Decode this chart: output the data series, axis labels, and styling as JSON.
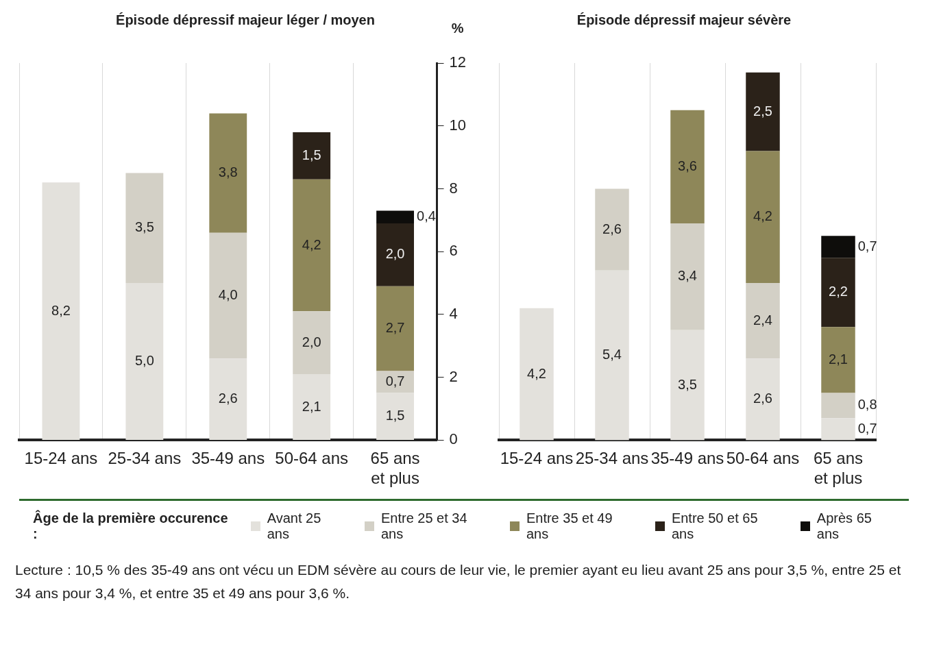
{
  "chart_data": [
    {
      "type": "bar",
      "stacked": true,
      "title": "Épisode dépressif majeur léger / moyen",
      "ylabel": "%",
      "categories": [
        "15-24 ans",
        "25-34 ans",
        "35-49 ans",
        "50-64 ans",
        "65 ans et plus"
      ],
      "ylim": [
        0,
        12
      ],
      "yticks": [
        0,
        2,
        4,
        6,
        8,
        10,
        12
      ],
      "grid": "x",
      "legend": "bottom",
      "legend_title": "Âge de la première occurence :",
      "annotations": [
        "Lecture : 10,5 % des 35-49 ans ont vécu un EDM sévère au cours de leur vie, le premier ayant eu lieu avant 25 ans pour 3,5 %, entre 25 et 34 ans pour 3,4 %, et entre 35 et 49 ans pour 3,6 %."
      ],
      "series": [
        {
          "name": "Avant 25 ans",
          "color": "#e3e1dc",
          "values": [
            8.2,
            5.0,
            2.6,
            2.1,
            1.5
          ],
          "value_labels": [
            "8,2",
            "5,0",
            "2,6",
            "2,1",
            "1,5"
          ]
        },
        {
          "name": "Entre 25 et 34 ans",
          "color": "#d3d0c6",
          "values": [
            null,
            3.5,
            4.0,
            2.0,
            0.7
          ],
          "value_labels": [
            null,
            "3,5",
            "4,0",
            "2,0",
            "0,7"
          ]
        },
        {
          "name": "Entre 35 et 49 ans",
          "color": "#8e8759",
          "values": [
            null,
            null,
            3.8,
            4.2,
            2.7
          ],
          "value_labels": [
            null,
            null,
            "3,8",
            "4,2",
            "2,7"
          ]
        },
        {
          "name": "Entre 50 et 65 ans",
          "color": "#2b2219",
          "values": [
            null,
            null,
            null,
            1.5,
            2.0
          ],
          "value_labels": [
            null,
            null,
            null,
            "1,5",
            "2,0"
          ]
        },
        {
          "name": "Après 65 ans",
          "color": "#0e0d0b",
          "values": [
            null,
            null,
            null,
            null,
            0.4
          ],
          "value_labels": [
            null,
            null,
            null,
            null,
            "0,4"
          ]
        }
      ]
    },
    {
      "type": "bar",
      "stacked": true,
      "title": "Épisode dépressif majeur sévère",
      "categories": [
        "15-24 ans",
        "25-34 ans",
        "35-49 ans",
        "50-64 ans",
        "65 ans et plus"
      ],
      "ylim": [
        0,
        12
      ],
      "yticks": [
        0,
        2,
        4,
        6,
        8,
        10,
        12
      ],
      "tick_labels": "x",
      "grid": "x",
      "series": [
        {
          "color": "#e3e1dc",
          "values": [
            4.2,
            5.4,
            3.5,
            2.6,
            0.7
          ],
          "value_labels": [
            "4,2",
            "5,4",
            "3,5",
            "2,6",
            "0,7"
          ]
        },
        {
          "color": "#d3d0c6",
          "values": [
            null,
            2.6,
            3.4,
            2.4,
            0.8
          ],
          "value_labels": [
            null,
            "2,6",
            "3,4",
            "2,4",
            "0,8"
          ]
        },
        {
          "color": "#8e8759",
          "values": [
            null,
            null,
            3.6,
            4.2,
            2.1
          ],
          "value_labels": [
            null,
            null,
            "3,6",
            "4,2",
            "2,1"
          ]
        },
        {
          "color": "#2b2219",
          "values": [
            null,
            null,
            null,
            2.5,
            2.2
          ],
          "value_labels": [
            null,
            null,
            null,
            "2,5",
            "2,2"
          ]
        },
        {
          "color": "#0e0d0b",
          "values": [
            null,
            null,
            null,
            null,
            0.7
          ],
          "value_labels": [
            null,
            null,
            null,
            null,
            "0,7"
          ]
        }
      ]
    }
  ]
}
